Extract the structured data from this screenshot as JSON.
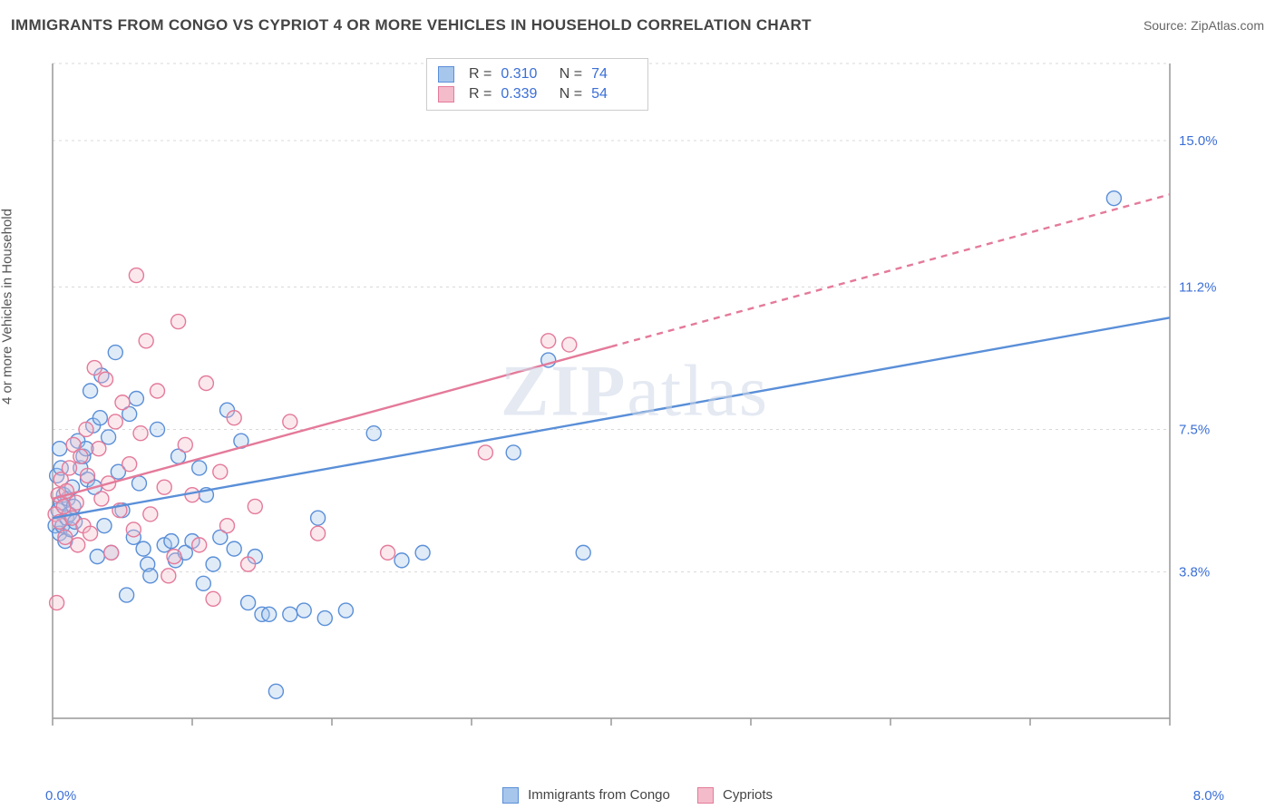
{
  "title": "IMMIGRANTS FROM CONGO VS CYPRIOT 4 OR MORE VEHICLES IN HOUSEHOLD CORRELATION CHART",
  "source": "Source: ZipAtlas.com",
  "watermark": "ZIPatlas",
  "chart": {
    "type": "scatter",
    "xlim": [
      0,
      8
    ],
    "ylim": [
      0,
      17
    ],
    "y_ticks": [
      3.8,
      7.5,
      11.2,
      15.0
    ],
    "y_tick_labels": [
      "3.8%",
      "7.5%",
      "11.2%",
      "15.0%"
    ],
    "x_ticks": [
      0,
      1,
      2,
      3,
      4,
      5,
      6,
      7,
      8
    ],
    "x_edge_labels": [
      "0.0%",
      "8.0%"
    ],
    "y_label": "4 or more Vehicles in Household",
    "grid_color": "#d8d8d8",
    "axis_color": "#999999",
    "tick_label_color": "#3b6fd6",
    "background_color": "#ffffff",
    "marker_radius": 8,
    "marker_stroke_width": 1.4,
    "marker_fill_opacity": 0.35,
    "line_width": 2.4,
    "series": [
      {
        "id": "congo",
        "label": "Immigrants from Congo",
        "color_stroke": "#5a8fd8",
        "color_fill": "#a7c6ec",
        "R": "0.310",
        "N": "74",
        "regression": {
          "x1": 0,
          "y1": 5.2,
          "x2": 8,
          "y2": 10.4,
          "dashed_from_x": null
        },
        "points": [
          [
            0.02,
            5.0
          ],
          [
            0.04,
            5.4
          ],
          [
            0.05,
            4.8
          ],
          [
            0.06,
            5.6
          ],
          [
            0.07,
            5.0
          ],
          [
            0.08,
            5.8
          ],
          [
            0.09,
            4.6
          ],
          [
            0.1,
            5.2
          ],
          [
            0.11,
            5.7
          ],
          [
            0.12,
            5.3
          ],
          [
            0.13,
            4.9
          ],
          [
            0.14,
            6.0
          ],
          [
            0.15,
            5.5
          ],
          [
            0.16,
            5.1
          ],
          [
            0.18,
            7.2
          ],
          [
            0.2,
            6.5
          ],
          [
            0.22,
            6.8
          ],
          [
            0.24,
            7.0
          ],
          [
            0.25,
            6.2
          ],
          [
            0.27,
            8.5
          ],
          [
            0.29,
            7.6
          ],
          [
            0.3,
            6.0
          ],
          [
            0.32,
            4.2
          ],
          [
            0.34,
            7.8
          ],
          [
            0.35,
            8.9
          ],
          [
            0.37,
            5.0
          ],
          [
            0.4,
            7.3
          ],
          [
            0.42,
            4.3
          ],
          [
            0.45,
            9.5
          ],
          [
            0.47,
            6.4
          ],
          [
            0.5,
            5.4
          ],
          [
            0.53,
            3.2
          ],
          [
            0.55,
            7.9
          ],
          [
            0.58,
            4.7
          ],
          [
            0.6,
            8.3
          ],
          [
            0.62,
            6.1
          ],
          [
            0.65,
            4.4
          ],
          [
            0.68,
            4.0
          ],
          [
            0.7,
            3.7
          ],
          [
            0.75,
            7.5
          ],
          [
            0.8,
            4.5
          ],
          [
            0.85,
            4.6
          ],
          [
            0.88,
            4.1
          ],
          [
            0.9,
            6.8
          ],
          [
            0.95,
            4.3
          ],
          [
            1.0,
            4.6
          ],
          [
            1.05,
            6.5
          ],
          [
            1.08,
            3.5
          ],
          [
            1.1,
            5.8
          ],
          [
            1.15,
            4.0
          ],
          [
            1.2,
            4.7
          ],
          [
            1.25,
            8.0
          ],
          [
            1.3,
            4.4
          ],
          [
            1.35,
            7.2
          ],
          [
            1.4,
            3.0
          ],
          [
            1.45,
            4.2
          ],
          [
            1.5,
            2.7
          ],
          [
            1.55,
            2.7
          ],
          [
            1.6,
            0.7
          ],
          [
            1.7,
            2.7
          ],
          [
            1.8,
            2.8
          ],
          [
            1.9,
            5.2
          ],
          [
            1.95,
            2.6
          ],
          [
            2.1,
            2.8
          ],
          [
            2.3,
            7.4
          ],
          [
            2.5,
            4.1
          ],
          [
            2.65,
            4.3
          ],
          [
            3.3,
            6.9
          ],
          [
            3.55,
            9.3
          ],
          [
            3.8,
            4.3
          ],
          [
            0.03,
            6.3
          ],
          [
            0.05,
            7.0
          ],
          [
            0.06,
            6.5
          ],
          [
            7.6,
            13.5
          ]
        ]
      },
      {
        "id": "cypriots",
        "label": "Cypriots",
        "color_stroke": "#e47a9a",
        "color_fill": "#f4bccb",
        "R": "0.339",
        "N": "54",
        "regression": {
          "x1": 0,
          "y1": 5.7,
          "x2": 8,
          "y2": 13.6,
          "dashed_from_x": 4.0
        },
        "points": [
          [
            0.02,
            5.3
          ],
          [
            0.04,
            5.8
          ],
          [
            0.05,
            5.1
          ],
          [
            0.06,
            6.2
          ],
          [
            0.08,
            5.5
          ],
          [
            0.09,
            4.7
          ],
          [
            0.1,
            5.9
          ],
          [
            0.12,
            6.5
          ],
          [
            0.14,
            5.2
          ],
          [
            0.15,
            7.1
          ],
          [
            0.17,
            5.6
          ],
          [
            0.18,
            4.5
          ],
          [
            0.2,
            6.8
          ],
          [
            0.22,
            5.0
          ],
          [
            0.24,
            7.5
          ],
          [
            0.25,
            6.3
          ],
          [
            0.27,
            4.8
          ],
          [
            0.3,
            9.1
          ],
          [
            0.33,
            7.0
          ],
          [
            0.35,
            5.7
          ],
          [
            0.38,
            8.8
          ],
          [
            0.4,
            6.1
          ],
          [
            0.42,
            4.3
          ],
          [
            0.45,
            7.7
          ],
          [
            0.48,
            5.4
          ],
          [
            0.5,
            8.2
          ],
          [
            0.55,
            6.6
          ],
          [
            0.58,
            4.9
          ],
          [
            0.6,
            11.5
          ],
          [
            0.63,
            7.4
          ],
          [
            0.67,
            9.8
          ],
          [
            0.7,
            5.3
          ],
          [
            0.75,
            8.5
          ],
          [
            0.8,
            6.0
          ],
          [
            0.83,
            3.7
          ],
          [
            0.87,
            4.2
          ],
          [
            0.9,
            10.3
          ],
          [
            0.95,
            7.1
          ],
          [
            1.0,
            5.8
          ],
          [
            1.05,
            4.5
          ],
          [
            1.1,
            8.7
          ],
          [
            1.15,
            3.1
          ],
          [
            1.2,
            6.4
          ],
          [
            1.25,
            5.0
          ],
          [
            1.3,
            7.8
          ],
          [
            1.4,
            4.0
          ],
          [
            1.45,
            5.5
          ],
          [
            1.7,
            7.7
          ],
          [
            1.9,
            4.8
          ],
          [
            2.4,
            4.3
          ],
          [
            3.1,
            6.9
          ],
          [
            3.55,
            9.8
          ],
          [
            3.7,
            9.7
          ],
          [
            0.03,
            3.0
          ]
        ]
      }
    ]
  },
  "bottom_legend": [
    {
      "label": "Immigrants from Congo",
      "fill": "#a7c6ec",
      "stroke": "#5a8fd8"
    },
    {
      "label": "Cypriots",
      "fill": "#f4bccb",
      "stroke": "#e47a9a"
    }
  ]
}
